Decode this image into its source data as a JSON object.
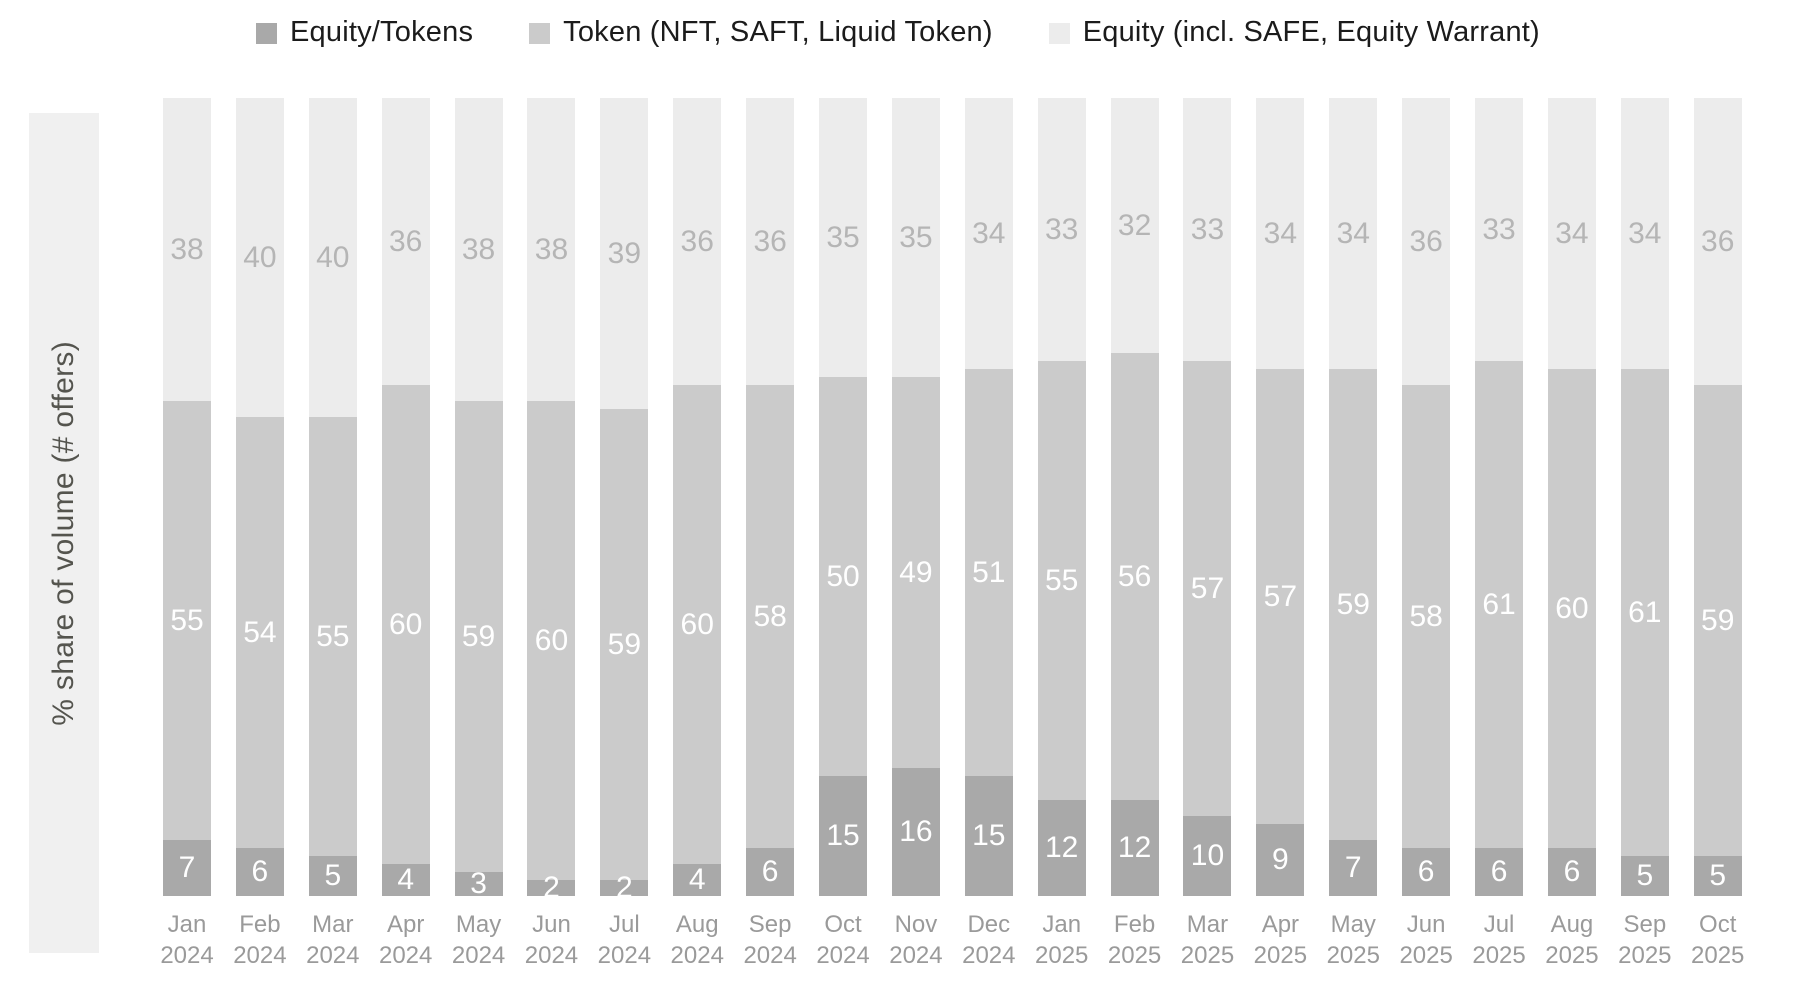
{
  "legend": {
    "items": [
      {
        "label": "Equity/Tokens",
        "color": "#a9a9a9"
      },
      {
        "label": "Token (NFT, SAFT, Liquid Token)",
        "color": "#cbcbcb"
      },
      {
        "label": "Equity (incl. SAFE, Equity Warrant)",
        "color": "#ececec"
      }
    ]
  },
  "y_axis": {
    "title": "% share of volume (# offers)"
  },
  "chart_data": {
    "type": "bar",
    "stacked": true,
    "stack_total": 100,
    "title": "",
    "xlabel": "",
    "ylabel": "% share of volume (# offers)",
    "ylim": [
      0,
      100
    ],
    "grid": false,
    "legend_position": "top",
    "categories": [
      "Jan 2024",
      "Feb 2024",
      "Mar 2024",
      "Apr 2024",
      "May 2024",
      "Jun 2024",
      "Jul 2024",
      "Aug 2024",
      "Sep 2024",
      "Oct 2024",
      "Nov 2024",
      "Dec 2024",
      "Jan 2025",
      "Feb 2025",
      "Mar 2025",
      "Apr 2025",
      "May 2025",
      "Jun 2025",
      "Jul 2025",
      "Aug 2025",
      "Sep 2025",
      "Oct 2025"
    ],
    "series": [
      {
        "name": "Equity/Tokens",
        "color": "#a9a9a9",
        "label_color": "#ffffff",
        "values": [
          7,
          6,
          5,
          4,
          3,
          2,
          2,
          4,
          6,
          15,
          16,
          15,
          12,
          12,
          10,
          9,
          7,
          6,
          6,
          6,
          5,
          5
        ]
      },
      {
        "name": "Token (NFT, SAFT, Liquid Token)",
        "color": "#cbcbcb",
        "label_color": "#ffffff",
        "values": [
          55,
          54,
          55,
          60,
          59,
          60,
          59,
          60,
          58,
          50,
          49,
          51,
          55,
          56,
          57,
          57,
          59,
          58,
          61,
          60,
          61,
          59
        ]
      },
      {
        "name": "Equity (incl. SAFE, Equity Warrant)",
        "color": "#ececec",
        "label_color": "#b5b5b5",
        "values": [
          38,
          40,
          40,
          36,
          38,
          38,
          39,
          36,
          36,
          35,
          35,
          34,
          33,
          32,
          33,
          34,
          34,
          36,
          33,
          34,
          34,
          36
        ]
      }
    ]
  }
}
